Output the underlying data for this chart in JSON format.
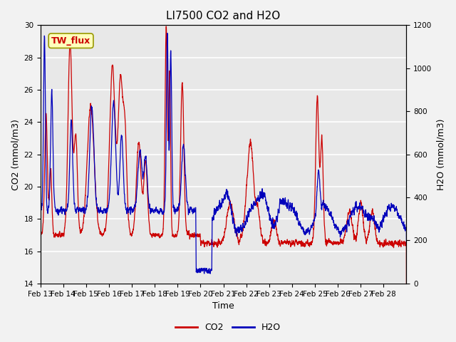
{
  "title": "LI7500 CO2 and H2O",
  "xlabel": "Time",
  "ylabel_left": "CO2 (mmol/m3)",
  "ylabel_right": "H2O (mmol/m3)",
  "ylim_left": [
    14,
    30
  ],
  "ylim_right": [
    0,
    1200
  ],
  "co2_color": "#cc0000",
  "h2o_color": "#0000bb",
  "plot_bg_color": "#e8e8e8",
  "fig_bg_color": "#f2f2f2",
  "annotation_text": "TW_flux",
  "annotation_bg": "#ffffbb",
  "annotation_edge": "#999900",
  "annotation_text_color": "#cc0000",
  "xtick_labels": [
    "Feb 13",
    "Feb 14",
    "Feb 15",
    "Feb 16",
    "Feb 17",
    "Feb 18",
    "Feb 19",
    "Feb 20",
    "Feb 21",
    "Feb 22",
    "Feb 23",
    "Feb 24",
    "Feb 25",
    "Feb 26",
    "Feb 27",
    "Feb 28"
  ],
  "yticks_left": [
    14,
    16,
    18,
    20,
    22,
    24,
    26,
    28,
    30
  ],
  "yticks_right": [
    0,
    200,
    400,
    600,
    800,
    1000,
    1200
  ],
  "legend_co2": "CO2",
  "legend_h2o": "H2O",
  "title_fontsize": 11,
  "axis_fontsize": 9,
  "tick_fontsize": 7.5,
  "legend_fontsize": 9,
  "grid_color": "#ffffff",
  "linewidth": 0.9
}
